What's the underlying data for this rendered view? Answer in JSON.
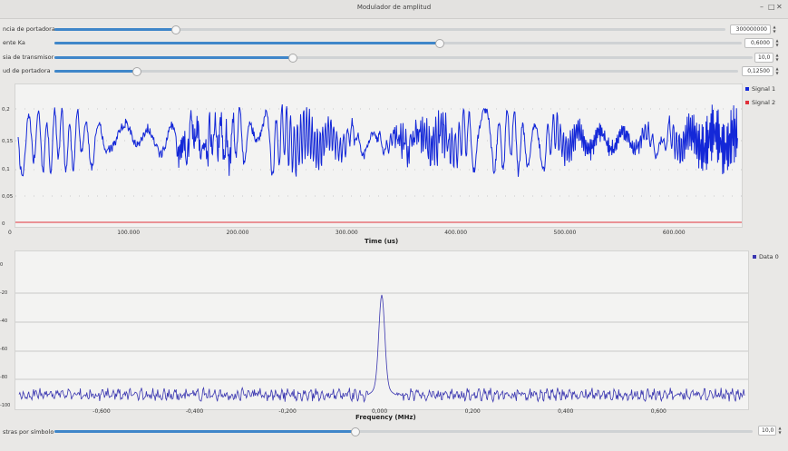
{
  "window": {
    "title": "Modulador de amplitud",
    "controls": [
      "–",
      "□",
      "✕"
    ]
  },
  "controls": [
    {
      "label": "ncia de portadora",
      "value": "300000000",
      "slider_fraction": 0.18
    },
    {
      "label": "ente Ka",
      "value": "0,6000",
      "slider_fraction": 0.56
    },
    {
      "label": "sia de transmisor",
      "value": "10,0",
      "slider_fraction": 0.34
    },
    {
      "label": "ud de portadora",
      "value": "0,12500",
      "slider_fraction": 0.12
    }
  ],
  "bottom_control": {
    "label": "stras por símbolo",
    "value": "10,0",
    "slider_fraction": 0.43
  },
  "colors": {
    "signal1": "#1428d8",
    "signal2": "#e0303a",
    "data0": "#3a36b0",
    "slider_accent": "#3f86c9"
  },
  "chart_data": [
    {
      "type": "line",
      "title": "",
      "xlabel": "Time (us)",
      "ylabel": "",
      "xlim": [
        0,
        660000
      ],
      "x_ticks": [
        "0",
        "100.000",
        "200.000",
        "300.000",
        "400.000",
        "500.000",
        "600.000"
      ],
      "y_ticks": [
        "0,2",
        "0,15",
        "0,1",
        "0,05",
        "0"
      ],
      "legend": [
        "Signal 1",
        "Signal 2"
      ],
      "legend_position": "top-right",
      "series": [
        {
          "name": "Signal 1",
          "description_values": "oscillating between ~0,05 and ~0,18"
        },
        {
          "name": "Signal 2",
          "values_constant": 0
        }
      ]
    },
    {
      "type": "line",
      "title": "",
      "xlabel": "Frequency (MHz)",
      "ylabel": "",
      "xlim": [
        -0.78,
        0.78
      ],
      "x_ticks": [
        "-0,600",
        "-0,400",
        "-0,200",
        "0,000",
        "0,200",
        "0,400",
        "0,600"
      ],
      "y_ticks": [
        "0",
        "-20",
        "-40",
        "-60",
        "-80",
        "-100"
      ],
      "legend": [
        "Data 0"
      ],
      "legend_position": "top-right",
      "series": [
        {
          "name": "Data 0",
          "peak": {
            "x": 0.0,
            "y": -35
          },
          "noise_floor": -100
        }
      ]
    }
  ]
}
